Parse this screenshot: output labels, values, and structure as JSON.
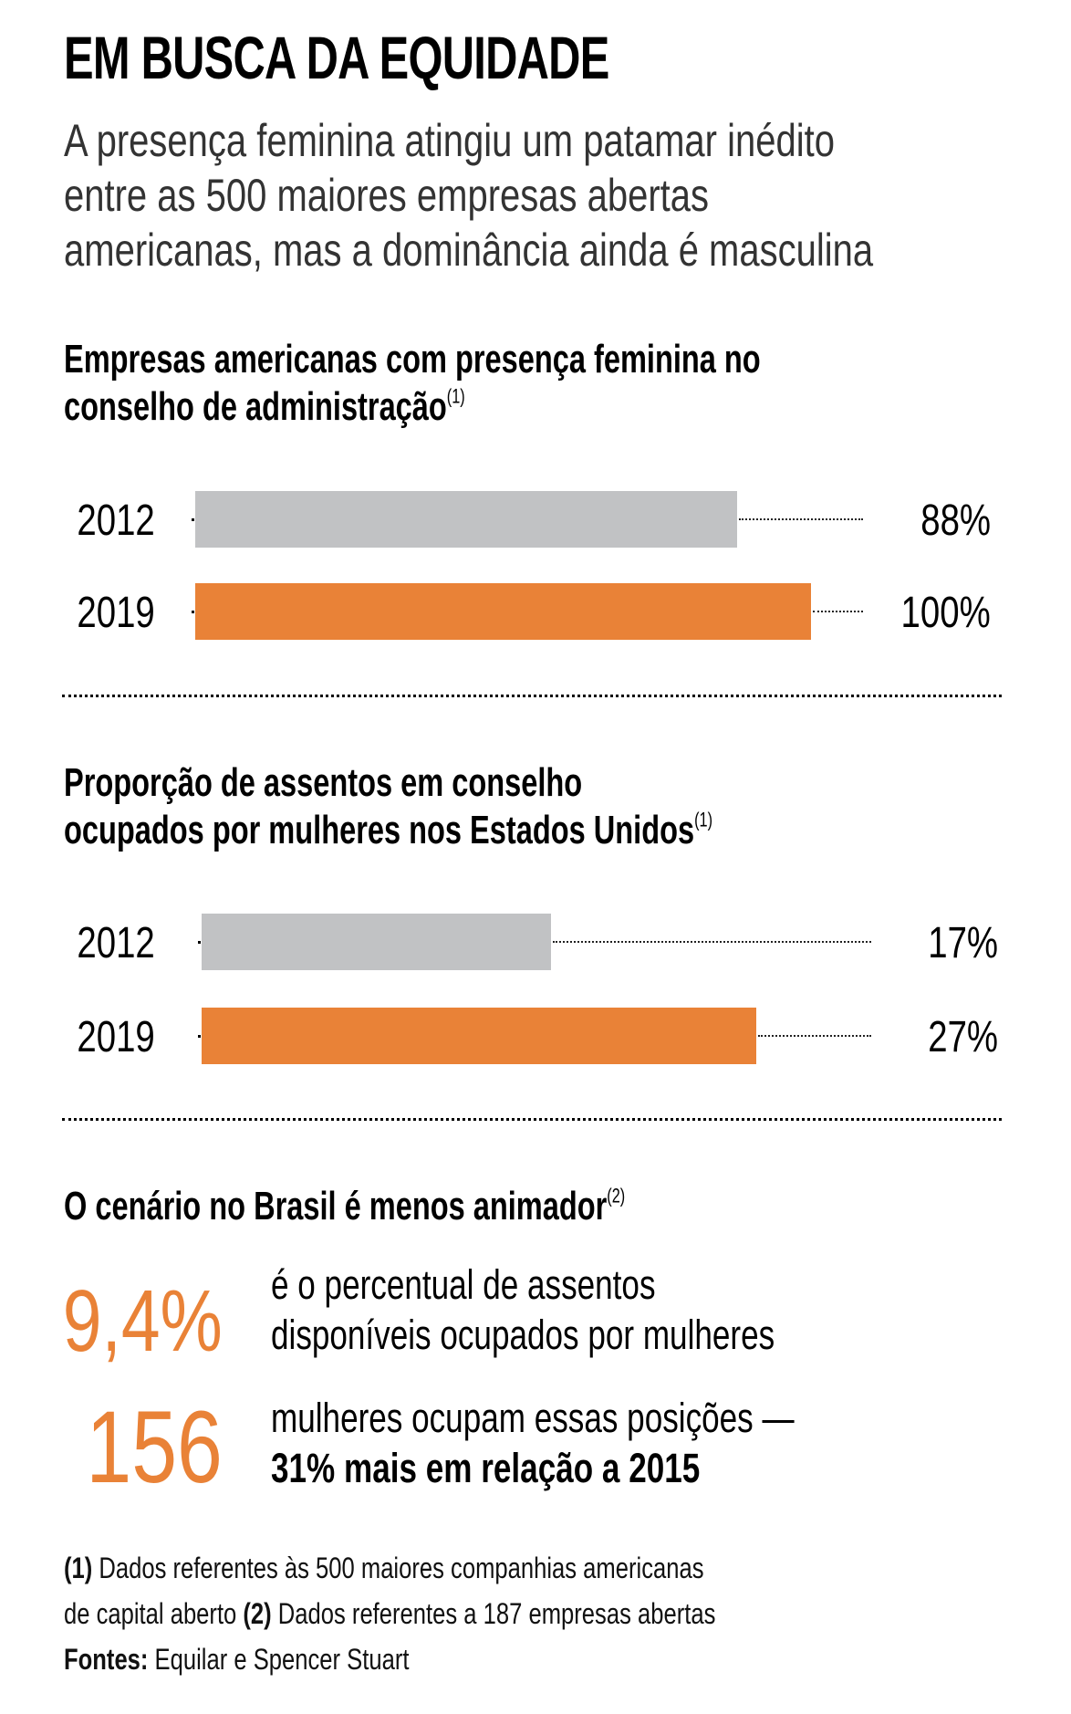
{
  "header": {
    "title": "EM BUSCA DA EQUIDADE",
    "subtitle_lines": [
      "A presença feminina atingiu um patamar inédito",
      "entre as 500 maiores empresas abertas",
      "americanas, mas a dominância ainda é masculina"
    ]
  },
  "colors": {
    "gray_bar": "#c1c2c4",
    "orange_bar": "#e98237",
    "highlight_number": "#e98237",
    "text": "#000000",
    "subtitle_text": "#333333"
  },
  "sections": {
    "board_presence": {
      "title_lines": [
        "Empresas americanas com presença feminina no",
        "conselho de administração"
      ],
      "footnote_ref": "(1)"
    },
    "seat_share": {
      "title_lines": [
        "Proporção de assentos em conselho",
        "ocupados por mulheres nos Estados Unidos"
      ],
      "footnote_ref": "(1)"
    },
    "brazil": {
      "title": "O cenário no Brasil é menos animador",
      "footnote_ref": "(2)",
      "stats": [
        {
          "number": "9,4%",
          "text_lines": [
            "é o percentual de assentos",
            "disponíveis ocupados por mulheres"
          ],
          "bold_line": ""
        },
        {
          "number": "156",
          "text_lines": [
            "mulheres ocupam essas posições —"
          ],
          "bold_line": "31% mais em relação a 2015"
        }
      ]
    }
  },
  "chart_data": [
    {
      "type": "bar",
      "orientation": "horizontal",
      "title": "Empresas americanas com presença feminina no conselho de administração",
      "categories": [
        "2012",
        "2019"
      ],
      "values": [
        88,
        100
      ],
      "value_labels": [
        "88%",
        "100%"
      ],
      "unit": "%",
      "xlim": [
        0,
        100
      ],
      "bar_colors": [
        "#c1c2c4",
        "#e98237"
      ],
      "grid": false,
      "legend": "none"
    },
    {
      "type": "bar",
      "orientation": "horizontal",
      "title": "Proporção de assentos em conselho ocupados por mulheres nos Estados Unidos",
      "categories": [
        "2012",
        "2019"
      ],
      "values": [
        17,
        27
      ],
      "value_labels": [
        "17%",
        "27%"
      ],
      "unit": "%",
      "xlim": [
        0,
        27
      ],
      "bar_colors": [
        "#c1c2c4",
        "#e98237"
      ],
      "grid": false,
      "legend": "none"
    }
  ],
  "footnotes": {
    "note1_label": "(1)",
    "note1_text_a": "Dados referentes às 500 maiores companhias americanas",
    "note1_text_b": "de capital aberto",
    "note2_label": "(2)",
    "note2_text": "Dados referentes a 187 empresas abertas",
    "sources_label": "Fontes:",
    "sources_text": "Equilar e Spencer Stuart"
  }
}
